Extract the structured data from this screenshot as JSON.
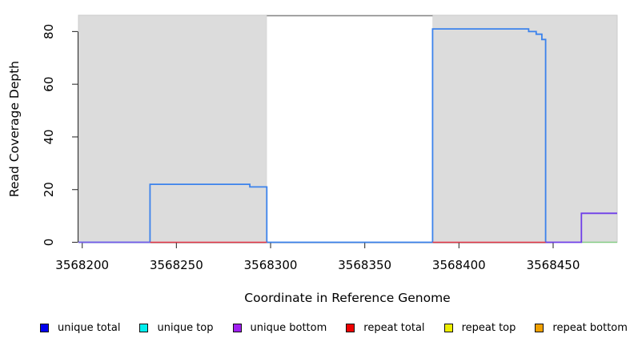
{
  "chart_data": {
    "type": "line",
    "subtype": "step-coverage",
    "title": "",
    "xlabel": "Coordinate in Reference Genome",
    "ylabel": "Read Coverage Depth",
    "xlim": [
      3568198,
      3568484
    ],
    "ylim": [
      0,
      86.2
    ],
    "x_ticks": [
      "3568200",
      "3568250",
      "3568300",
      "3568350",
      "3568400",
      "3568450"
    ],
    "x_tick_values": [
      3568200,
      3568250,
      3568300,
      3568350,
      3568400,
      3568450
    ],
    "y_ticks": [
      "0",
      "20",
      "40",
      "60",
      "80"
    ],
    "y_tick_values": [
      0,
      20,
      40,
      60,
      80
    ],
    "grid": false,
    "background": {
      "shaded_fill": "#dcdcdc",
      "shaded_edge": "#c9c9c9",
      "gap_fill": "#ffffff",
      "gap_top_border": "#8a8a8a"
    },
    "shaded_regions": [
      {
        "x0": 3568198,
        "x1": 3568298
      },
      {
        "x0": 3568386,
        "x1": 3568484
      }
    ],
    "gap_region": {
      "x0": 3568298,
      "x1": 3568386
    },
    "series": [
      {
        "name": "unique-total-coverage",
        "color": "#3b82ec",
        "width": 1.8,
        "points": [
          [
            3568198,
            0
          ],
          [
            3568236,
            0
          ],
          [
            3568236,
            22
          ],
          [
            3568289,
            22
          ],
          [
            3568289,
            21
          ],
          [
            3568298,
            21
          ],
          [
            3568298,
            0
          ],
          [
            3568386,
            0
          ],
          [
            3568386,
            81
          ],
          [
            3568437,
            81
          ],
          [
            3568437,
            80
          ],
          [
            3568441,
            80
          ],
          [
            3568441,
            79
          ],
          [
            3568444,
            79
          ],
          [
            3568444,
            77
          ],
          [
            3568446,
            77
          ],
          [
            3568446,
            0
          ]
        ]
      },
      {
        "name": "repeat-total-baseline-left",
        "color": "#e7384a",
        "width": 1.4,
        "points": [
          [
            3568236,
            0
          ],
          [
            3568298,
            0
          ]
        ]
      },
      {
        "name": "repeat-total-baseline-right",
        "color": "#e7384a",
        "width": 1.4,
        "points": [
          [
            3568386,
            0
          ],
          [
            3568446,
            0
          ]
        ]
      },
      {
        "name": "unique-bottom-baseline-left",
        "color": "#7a5ae8",
        "width": 1.6,
        "points": [
          [
            3568198,
            0
          ],
          [
            3568236,
            0
          ]
        ]
      },
      {
        "name": "green-baseline-right",
        "color": "#85cc85",
        "width": 1.5,
        "points": [
          [
            3568465,
            0
          ],
          [
            3568484,
            0
          ]
        ]
      },
      {
        "name": "unique-bottom-step-right",
        "color": "#6f3ee8",
        "width": 1.8,
        "points": [
          [
            3568446,
            0
          ],
          [
            3568465,
            0
          ],
          [
            3568465,
            11
          ],
          [
            3568484,
            11
          ]
        ]
      }
    ],
    "legend": {
      "position": "bottom",
      "items": [
        {
          "label": "unique total",
          "color": "#0000ee"
        },
        {
          "label": "unique top",
          "color": "#00eeee"
        },
        {
          "label": "unique bottom",
          "color": "#a020f0"
        },
        {
          "label": "repeat total",
          "color": "#ee0000"
        },
        {
          "label": "repeat top",
          "color": "#eeee00"
        },
        {
          "label": "repeat bottom",
          "color": "#f0a000"
        }
      ]
    }
  }
}
